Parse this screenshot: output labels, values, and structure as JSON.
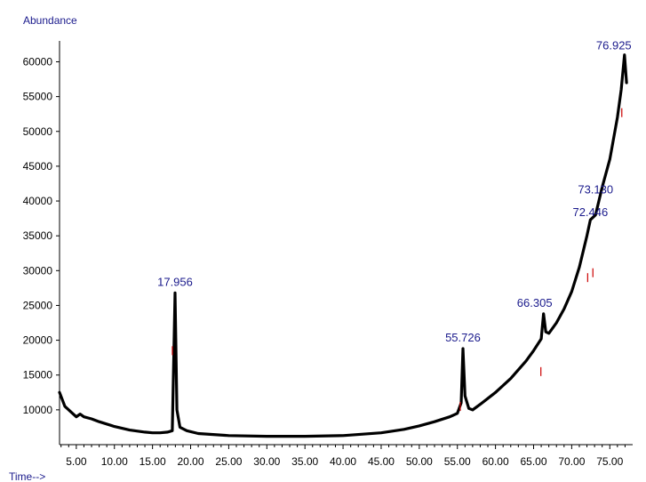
{
  "chart_data": {
    "type": "line",
    "ylabel": "Abundance",
    "xlabel": "Time-->",
    "xlim": [
      2.8,
      78.0
    ],
    "ylim": [
      5000,
      63000
    ],
    "y_ticks": [
      10000,
      15000,
      20000,
      25000,
      30000,
      35000,
      40000,
      45000,
      50000,
      55000,
      60000
    ],
    "y_tick_labels": [
      "10000",
      "15000",
      "20000",
      "25000",
      "30000",
      "35000",
      "40000",
      "45000",
      "50000",
      "55000",
      "60000"
    ],
    "x_ticks": [
      5,
      10,
      15,
      20,
      25,
      30,
      35,
      40,
      45,
      50,
      55,
      60,
      65,
      70,
      75
    ],
    "x_tick_labels": [
      "5.00",
      "10.00",
      "15.00",
      "20.00",
      "25.00",
      "30.00",
      "35.00",
      "40.00",
      "45.00",
      "50.00",
      "55.00",
      "60.00",
      "65.00",
      "70.00",
      "75.00"
    ],
    "grid": false,
    "series": [
      {
        "x": [
          2.8,
          3.5,
          4.5,
          5.0,
          5.5,
          6.0,
          7.0,
          8.0,
          10.0,
          12.0,
          14.0,
          15.0,
          16.0,
          17.0,
          17.6,
          17.956,
          18.2,
          18.6,
          19.5,
          21.0,
          25.0,
          30.0,
          35.0,
          40.0,
          45.0,
          48.0,
          50.0,
          52.0,
          54.0,
          55.0,
          55.5,
          55.726,
          56.0,
          56.5,
          57.0,
          58.0,
          60.0,
          62.0,
          64.0,
          65.0,
          66.0,
          66.305,
          66.6,
          67.0,
          68.0,
          69.0,
          70.0,
          71.0,
          72.0,
          72.446,
          73.13,
          74.0,
          75.0,
          76.0,
          76.5,
          76.925,
          77.2
        ],
        "y": [
          12500,
          10500,
          9500,
          9000,
          9400,
          9000,
          8700,
          8300,
          7600,
          7100,
          6800,
          6700,
          6700,
          6800,
          7000,
          26800,
          10000,
          7500,
          7000,
          6600,
          6300,
          6200,
          6200,
          6300,
          6700,
          7200,
          7700,
          8300,
          9000,
          9500,
          11000,
          18800,
          12000,
          10200,
          10000,
          10800,
          12500,
          14500,
          17000,
          18500,
          20200,
          23800,
          21200,
          21000,
          22500,
          24500,
          27000,
          30500,
          35000,
          37300,
          38000,
          42000,
          46000,
          52000,
          56000,
          61000,
          57000
        ]
      }
    ],
    "peak_labels": [
      {
        "text": "17.956",
        "x": 17.956,
        "y": 26800
      },
      {
        "text": "55.726",
        "x": 55.726,
        "y": 18800
      },
      {
        "text": "66.305",
        "x": 66.305,
        "y": 23800
      },
      {
        "text": "73.130",
        "x": 73.13,
        "y": 38000
      },
      {
        "text": "72.446",
        "x": 72.446,
        "y": 37300
      },
      {
        "text": "76.925",
        "x": 76.925,
        "y": 61000
      }
    ],
    "colors": {
      "trace": "#000000",
      "labels": "#1a1a8c",
      "integration": "#cc0000"
    }
  }
}
